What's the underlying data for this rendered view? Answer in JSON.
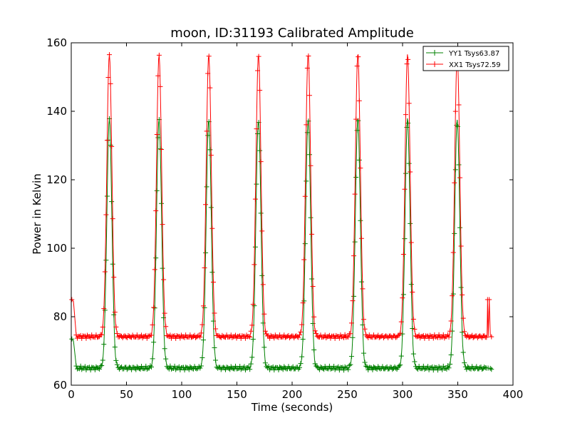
{
  "chart_data": {
    "type": "line",
    "title": "moon, ID:31193 Calibrated Amplitude",
    "xlabel": "Time (seconds)",
    "ylabel": "Power in Kelvin",
    "xlim": [
      0,
      400
    ],
    "ylim": [
      60,
      160
    ],
    "xticks": [
      "0",
      "50",
      "100",
      "150",
      "200",
      "250",
      "300",
      "350",
      "400"
    ],
    "yticks": [
      "60",
      "80",
      "100",
      "120",
      "140",
      "160"
    ],
    "grid": false,
    "legend_position": "top-right",
    "series": [
      {
        "name": "YY1 Tsys63.87",
        "color": "#008000",
        "baseline": 65.0,
        "peak_value": 137.5,
        "edge_values": [
          {
            "x": 0.5,
            "y": 73.5
          },
          {
            "x": 2,
            "y": 73
          },
          {
            "x": 376,
            "y": 65
          }
        ],
        "peaks_x": [
          34.5,
          79.5,
          124.5,
          169.5,
          214.5,
          259.5,
          304.5,
          349.5
        ]
      },
      {
        "name": "XX1 Tsys72.59",
        "color": "#ff0000",
        "baseline": 74.2,
        "peak_value": 156.5,
        "edge_values": [
          {
            "x": 0.5,
            "y": 85
          },
          {
            "x": 2,
            "y": 84.5
          },
          {
            "x": 377,
            "y": 85
          }
        ],
        "peaks_x": [
          34.5,
          79.5,
          124.5,
          169.5,
          214.5,
          259.5,
          304.5,
          349.5
        ]
      }
    ]
  }
}
